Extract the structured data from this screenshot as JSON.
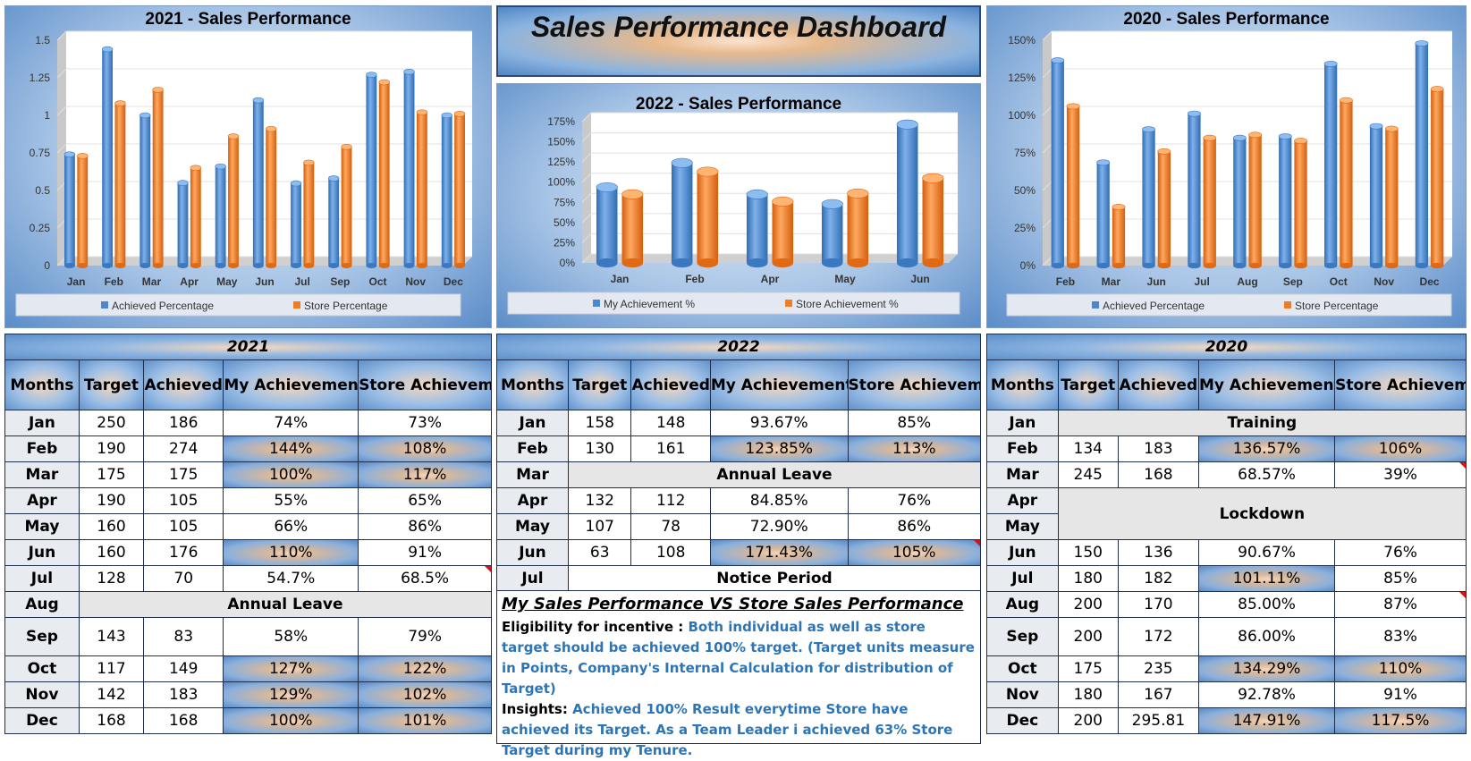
{
  "dashboard_title": "Sales Performance Dashboard",
  "colors": {
    "blue": "#4a87d0",
    "orange": "#f07d23"
  },
  "chart_data": [
    {
      "type": "bar",
      "title": "2021 - Sales Performance",
      "categories": [
        "Jan",
        "Feb",
        "Mar",
        "Apr",
        "May",
        "Jun",
        "Jul",
        "Sep",
        "Oct",
        "Nov",
        "Dec"
      ],
      "ylim": [
        0,
        1.5
      ],
      "yticks": [
        "0",
        "0.25",
        "0.5",
        "0.75",
        "1",
        "1.25",
        "1.5"
      ],
      "legend": "bottom",
      "series": [
        {
          "name": "Achieved Percentage",
          "values": [
            0.74,
            1.44,
            1.0,
            0.55,
            0.66,
            1.1,
            0.547,
            0.58,
            1.27,
            1.29,
            1.0
          ]
        },
        {
          "name": "Store Percentage",
          "values": [
            0.73,
            1.08,
            1.17,
            0.65,
            0.86,
            0.91,
            0.685,
            0.79,
            1.22,
            1.02,
            1.01
          ]
        }
      ]
    },
    {
      "type": "bar",
      "title": "2022 - Sales Performance",
      "categories": [
        "Jan",
        "Feb",
        "Apr",
        "May",
        "Jun"
      ],
      "ylim": [
        0,
        1.75
      ],
      "yticks": [
        "0%",
        "25%",
        "50%",
        "75%",
        "100%",
        "125%",
        "150%",
        "175%"
      ],
      "legend": "bottom",
      "series": [
        {
          "name": "My Achievement %",
          "values": [
            0.9367,
            1.2385,
            0.8485,
            0.729,
            1.7143
          ]
        },
        {
          "name": "Store Achievement %",
          "values": [
            0.85,
            1.13,
            0.76,
            0.86,
            1.05
          ]
        }
      ]
    },
    {
      "type": "bar",
      "title": "2020 - Sales Performance",
      "categories": [
        "Feb",
        "Mar",
        "Jun",
        "Jul",
        "Aug",
        "Sep",
        "Oct",
        "Nov",
        "Dec"
      ],
      "ylim": [
        0,
        1.5
      ],
      "yticks": [
        "0%",
        "25%",
        "50%",
        "75%",
        "100%",
        "125%",
        "150%"
      ],
      "legend": "bottom",
      "series": [
        {
          "name": "Achieved Percentage",
          "values": [
            1.3657,
            0.6857,
            0.9067,
            1.0111,
            0.85,
            0.86,
            1.3429,
            0.9278,
            1.4791
          ]
        },
        {
          "name": "Store Percentage",
          "values": [
            1.06,
            0.39,
            0.76,
            0.85,
            0.87,
            0.83,
            1.1,
            0.91,
            1.175
          ]
        }
      ]
    }
  ],
  "headers": [
    "Months",
    "Target",
    "Achieved",
    "My Achievement %",
    "Store Achievement %"
  ],
  "tables": [
    {
      "year": "2021",
      "rows": [
        {
          "m": "Jan",
          "t": "250",
          "a": "186",
          "my": "74%",
          "st": "73%",
          "myg": false,
          "stg": false
        },
        {
          "m": "Feb",
          "t": "190",
          "a": "274",
          "my": "144%",
          "st": "108%",
          "myg": true,
          "stg": true
        },
        {
          "m": "Mar",
          "t": "175",
          "a": "175",
          "my": "100%",
          "st": "117%",
          "myg": true,
          "stg": true
        },
        {
          "m": "Apr",
          "t": "190",
          "a": "105",
          "my": "55%",
          "st": "65%",
          "myg": false,
          "stg": false
        },
        {
          "m": "May",
          "t": "160",
          "a": "105",
          "my": "66%",
          "st": "86%",
          "myg": false,
          "stg": false
        },
        {
          "m": "Jun",
          "t": "160",
          "a": "176",
          "my": "110%",
          "st": "91%",
          "myg": true,
          "stg": false
        },
        {
          "m": "Jul",
          "t": "128",
          "a": "70",
          "my": "54.7%",
          "st": "68.5%",
          "myg": false,
          "stg": false,
          "flag": true
        },
        {
          "m": "Aug",
          "merge": "Annual Leave"
        },
        {
          "m": "Sep",
          "t": "143",
          "a": "83",
          "my": "58%",
          "st": "79%",
          "myg": false,
          "stg": false,
          "tall": true
        },
        {
          "m": "Oct",
          "t": "117",
          "a": "149",
          "my": "127%",
          "st": "122%",
          "myg": true,
          "stg": true
        },
        {
          "m": "Nov",
          "t": "142",
          "a": "183",
          "my": "129%",
          "st": "102%",
          "myg": true,
          "stg": true
        },
        {
          "m": "Dec",
          "t": "168",
          "a": "168",
          "my": "100%",
          "st": "101%",
          "myg": true,
          "stg": true
        }
      ]
    },
    {
      "year": "2022",
      "rows": [
        {
          "m": "Jan",
          "t": "158",
          "a": "148",
          "my": "93.67%",
          "st": "85%",
          "myg": false,
          "stg": false
        },
        {
          "m": "Feb",
          "t": "130",
          "a": "161",
          "my": "123.85%",
          "st": "113%",
          "myg": true,
          "stg": true
        },
        {
          "m": "Mar",
          "merge": "Annual Leave"
        },
        {
          "m": "Apr",
          "t": "132",
          "a": "112",
          "my": "84.85%",
          "st": "76%",
          "myg": false,
          "stg": false
        },
        {
          "m": "May",
          "t": "107",
          "a": "78",
          "my": "72.90%",
          "st": "86%",
          "myg": false,
          "stg": false
        },
        {
          "m": "Jun",
          "t": "63",
          "a": "108",
          "my": "171.43%",
          "st": "105%",
          "myg": true,
          "stg": true,
          "flag": true
        },
        {
          "m": "Jul",
          "merge": "Notice Period",
          "white": true
        }
      ]
    },
    {
      "year": "2020",
      "rows": [
        {
          "m": "Jan",
          "merge": "Training"
        },
        {
          "m": "Feb",
          "t": "134",
          "a": "183",
          "my": "136.57%",
          "st": "106%",
          "myg": true,
          "stg": true
        },
        {
          "m": "Mar",
          "t": "245",
          "a": "168",
          "my": "68.57%",
          "st": "39%",
          "myg": false,
          "stg": false,
          "flag": true
        },
        {
          "m": "Apr",
          "merge": "Lockdown",
          "span": 2
        },
        {
          "m": "May"
        },
        {
          "m": "Jun",
          "t": "150",
          "a": "136",
          "my": "90.67%",
          "st": "76%",
          "myg": false,
          "stg": false
        },
        {
          "m": "Jul",
          "t": "180",
          "a": "182",
          "my": "101.11%",
          "st": "85%",
          "myg": true,
          "stg": false
        },
        {
          "m": "Aug",
          "t": "200",
          "a": "170",
          "my": "85.00%",
          "st": "87%",
          "myg": false,
          "stg": false,
          "flag": true
        },
        {
          "m": "Sep",
          "t": "200",
          "a": "172",
          "my": "86.00%",
          "st": "83%",
          "myg": false,
          "stg": false,
          "tall": true
        },
        {
          "m": "Oct",
          "t": "175",
          "a": "235",
          "my": "134.29%",
          "st": "110%",
          "myg": true,
          "stg": true
        },
        {
          "m": "Nov",
          "t": "180",
          "a": "167",
          "my": "92.78%",
          "st": "91%",
          "myg": false,
          "stg": false
        },
        {
          "m": "Dec",
          "t": "200",
          "a": "295.81",
          "my": "147.91%",
          "st": "117.5%",
          "myg": true,
          "stg": true
        }
      ]
    }
  ],
  "notes": {
    "title": "My Sales Performance VS Store Sales Performance",
    "eligibility_label": "Eligibility for incentive : ",
    "eligibility_text": "Both individual as well as store target should be achieved 100% target. (Target units measure in Points, Company's Internal Calculation for distribution of Target)",
    "insights_label": "Insights: ",
    "insights_text": "Achieved 100% Result everytime Store have achieved its Target. As a Team Leader i achieved 63% Store Target during my Tenure."
  }
}
